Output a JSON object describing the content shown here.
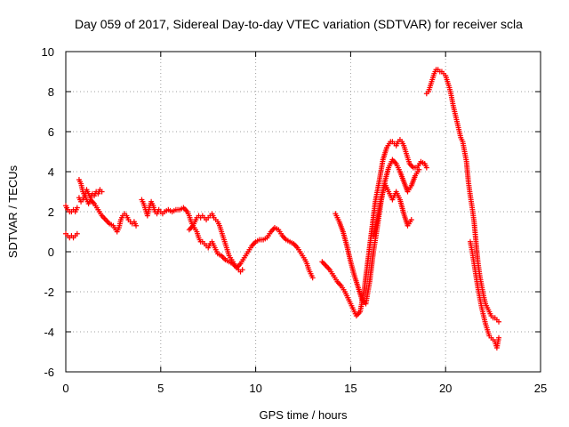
{
  "chart_data": {
    "type": "scatter",
    "title": "Day 059 of 2017, Sidereal Day-to-day VTEC variation (SDTVAR) for receiver scla",
    "xlabel": "GPS time / hours",
    "ylabel": "SDTVAR / TECUs",
    "xlim": [
      0,
      25
    ],
    "ylim": [
      -6,
      10
    ],
    "xticks": [
      "0",
      "5",
      "10",
      "15",
      "20",
      "25"
    ],
    "yticks": [
      "-6",
      "-4",
      "-2",
      "0",
      "2",
      "4",
      "6",
      "8",
      "10"
    ],
    "grid": true,
    "marker": "plus",
    "color": "#ff0000",
    "series": [
      {
        "x": [
          0.0,
          0.1,
          0.2,
          0.3,
          0.4,
          0.5,
          0.6
        ],
        "y": [
          2.3,
          2.1,
          2.0,
          2.0,
          2.1,
          2.0,
          2.2
        ]
      },
      {
        "x": [
          0.0,
          0.1,
          0.2,
          0.3,
          0.4,
          0.5,
          0.6
        ],
        "y": [
          0.9,
          0.8,
          0.7,
          0.8,
          0.7,
          0.8,
          0.9
        ]
      },
      {
        "x": [
          0.7,
          0.8,
          0.9,
          1.0,
          1.1,
          1.2,
          1.3,
          1.4,
          1.5,
          1.6,
          1.7,
          1.8,
          1.9
        ],
        "y": [
          3.6,
          3.4,
          3.0,
          2.8,
          3.1,
          2.9,
          2.7,
          2.9,
          2.8,
          3.0,
          2.9,
          3.1,
          3.0
        ]
      },
      {
        "x": [
          0.7,
          0.8,
          0.9,
          1.0,
          1.1,
          1.2,
          1.3,
          1.5,
          1.7,
          1.9,
          2.1,
          2.3,
          2.5,
          2.7,
          2.8,
          2.9,
          3.0,
          3.1,
          3.2,
          3.3,
          3.4,
          3.5,
          3.6,
          3.7
        ],
        "y": [
          2.7,
          2.5,
          2.6,
          2.8,
          2.6,
          2.4,
          2.6,
          2.4,
          2.1,
          1.8,
          1.6,
          1.4,
          1.3,
          1.0,
          1.2,
          1.6,
          1.8,
          1.9,
          1.8,
          1.6,
          1.5,
          1.4,
          1.5,
          1.3
        ]
      },
      {
        "x": [
          4.0,
          4.1,
          4.2,
          4.3,
          4.4,
          4.5,
          4.6,
          4.7,
          4.8,
          4.9,
          5.0,
          5.1,
          5.2,
          5.4,
          5.6,
          5.8,
          6.0,
          6.2,
          6.4,
          6.5,
          6.6,
          6.7,
          6.8,
          6.9,
          7.0,
          7.1,
          7.2,
          7.3,
          7.4,
          7.5,
          7.6,
          7.7,
          7.8,
          7.9,
          8.0,
          8.1,
          8.2,
          8.3,
          8.4,
          8.5,
          8.6,
          8.8,
          9.0,
          9.2,
          9.4,
          9.6,
          9.8,
          10.0,
          10.2,
          10.4,
          10.6,
          10.8,
          11.0,
          11.2,
          11.4,
          11.6,
          11.8,
          12.0,
          12.2,
          12.4,
          12.6,
          12.7,
          12.8,
          12.9,
          13.0
        ],
        "y": [
          2.6,
          2.4,
          2.1,
          1.8,
          2.2,
          2.5,
          2.3,
          2.0,
          1.9,
          2.1,
          2.0,
          1.9,
          2.0,
          2.1,
          2.0,
          2.1,
          2.1,
          2.2,
          2.0,
          1.8,
          1.5,
          1.3,
          1.5,
          1.7,
          1.8,
          1.7,
          1.8,
          1.7,
          1.6,
          1.7,
          1.8,
          1.9,
          1.7,
          1.6,
          1.5,
          1.3,
          1.0,
          0.7,
          0.4,
          0.1,
          -0.2,
          -0.5,
          -0.8,
          -0.6,
          -0.3,
          0.0,
          0.3,
          0.5,
          0.6,
          0.6,
          0.7,
          1.0,
          1.2,
          1.1,
          0.8,
          0.6,
          0.5,
          0.4,
          0.2,
          -0.1,
          -0.4,
          -0.6,
          -0.9,
          -1.1,
          -1.3
        ]
      },
      {
        "x": [
          6.5,
          6.7,
          6.9,
          7.0,
          7.1,
          7.2,
          7.3,
          7.4,
          7.5,
          7.6,
          7.7,
          7.8,
          7.9,
          8.0,
          8.2,
          8.4,
          8.6,
          8.8,
          9.0,
          9.1,
          9.2,
          9.3
        ],
        "y": [
          1.1,
          1.3,
          1.0,
          0.7,
          0.5,
          0.5,
          0.4,
          0.3,
          0.2,
          0.4,
          0.5,
          0.3,
          0.1,
          -0.1,
          -0.2,
          -0.4,
          -0.5,
          -0.6,
          -0.8,
          -0.9,
          -1.0,
          -0.9
        ]
      },
      {
        "x": [
          13.5,
          13.7,
          13.9,
          14.1,
          14.3,
          14.5,
          14.7,
          14.9,
          15.1,
          15.3,
          15.5,
          15.7,
          15.9,
          16.1,
          16.3,
          16.5,
          16.7,
          16.9,
          17.1,
          17.2,
          17.3,
          17.4,
          17.5,
          17.6,
          17.7,
          17.8,
          17.9,
          18.0,
          18.1,
          18.3,
          18.5,
          18.7,
          18.9,
          19.0
        ],
        "y": [
          -0.5,
          -0.7,
          -0.9,
          -1.2,
          -1.5,
          -1.7,
          -2.0,
          -2.4,
          -2.8,
          -3.2,
          -3.0,
          -2.0,
          -0.5,
          1.0,
          2.5,
          3.5,
          4.6,
          5.2,
          5.5,
          5.5,
          5.4,
          5.3,
          5.5,
          5.6,
          5.5,
          5.3,
          5.0,
          4.7,
          4.4,
          4.2,
          4.2,
          4.5,
          4.4,
          4.2
        ]
      },
      {
        "x": [
          14.2,
          14.4,
          14.6,
          14.8,
          15.0,
          15.2,
          15.4,
          15.6,
          15.8,
          16.0,
          16.2,
          16.4,
          16.6,
          16.8,
          17.0,
          17.2,
          17.4,
          17.6,
          17.8,
          18.0,
          18.2,
          18.4,
          18.6
        ],
        "y": [
          1.9,
          1.5,
          1.0,
          0.3,
          -0.5,
          -1.2,
          -1.8,
          -2.4,
          -2.6,
          -1.5,
          0.0,
          1.2,
          2.5,
          3.5,
          4.2,
          4.6,
          4.4,
          4.0,
          3.5,
          3.0,
          3.3,
          3.8,
          4.1
        ]
      },
      {
        "x": [
          16.2,
          16.4,
          16.6,
          16.8,
          17.0,
          17.2,
          17.4,
          17.6,
          17.8,
          18.0,
          18.2
        ],
        "y": [
          0.8,
          1.6,
          2.6,
          3.4,
          3.0,
          2.6,
          3.0,
          2.6,
          1.9,
          1.3,
          1.6
        ]
      },
      {
        "x": [
          19.0,
          19.1,
          19.2,
          19.3,
          19.4,
          19.5,
          19.6,
          19.7,
          19.8,
          19.9,
          20.0,
          20.1,
          20.2,
          20.3,
          20.4,
          20.5,
          20.6,
          20.7,
          20.8,
          20.9,
          21.0,
          21.1,
          21.2,
          21.3,
          21.4,
          21.5,
          21.6,
          21.7,
          21.8,
          21.9,
          22.0,
          22.1,
          22.2,
          22.3,
          22.4,
          22.5,
          22.6,
          22.7,
          22.8
        ],
        "y": [
          7.9,
          8.0,
          8.3,
          8.6,
          8.9,
          9.1,
          9.1,
          9.0,
          9.0,
          8.9,
          8.8,
          8.5,
          8.2,
          7.8,
          7.3,
          6.9,
          6.5,
          6.1,
          5.7,
          5.5,
          5.0,
          4.5,
          3.5,
          2.8,
          2.2,
          1.5,
          0.5,
          -0.5,
          -1.2,
          -1.7,
          -2.2,
          -2.6,
          -2.8,
          -3.0,
          -3.2,
          -3.3,
          -3.3,
          -3.4,
          -3.5
        ]
      },
      {
        "x": [
          21.3,
          21.4,
          21.5,
          21.6,
          21.7,
          21.8,
          21.9,
          22.0,
          22.1,
          22.2,
          22.3,
          22.4,
          22.5,
          22.6,
          22.7,
          22.8
        ],
        "y": [
          0.5,
          0.0,
          -0.6,
          -1.2,
          -1.8,
          -2.3,
          -2.8,
          -3.2,
          -3.6,
          -3.9,
          -4.2,
          -4.3,
          -4.4,
          -4.5,
          -4.8,
          -4.3
        ]
      }
    ]
  }
}
